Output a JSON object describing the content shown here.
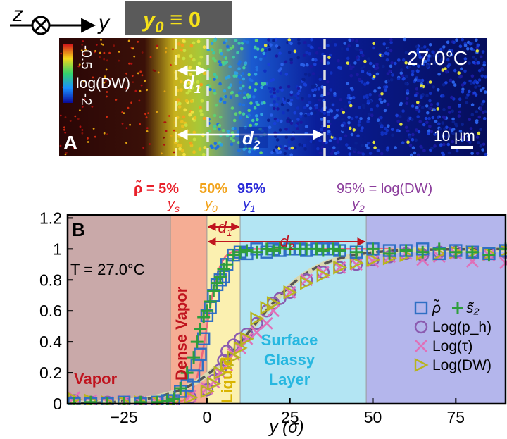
{
  "panel_a": {
    "panel_label": "A",
    "axis_z": "z",
    "axis_y": "y",
    "y0_banner": "y",
    "y0_banner_sub": "0",
    "y0_banner_rest": " ≡ 0",
    "temperature": "27.0°C",
    "colorbar_label": "log(DW)",
    "colorbar_max": "-0.5",
    "colorbar_min": "-2",
    "d1_label": "d",
    "d1_sub": "1",
    "d2_label": "d",
    "d2_sub": "2",
    "scale_bar_label": "10 μm",
    "colors": {
      "background": "#05050a",
      "banner": "#5a5a5a",
      "banner_text": "#f5e11a",
      "dashed": "#e8e8e8"
    }
  },
  "header_labels": {
    "rho_text": "ρ̃ = 5%",
    "ys_text": "y",
    "ys_sub": "s",
    "p50_text": "50%",
    "y0_text": "y",
    "y0_sub": "0",
    "p95_text": "95%",
    "y1_text": "y",
    "y1_sub": "1",
    "right_text": "95% = log(DW)",
    "y2_text": "y",
    "y2_sub": "2",
    "colors": {
      "red": "#e8202a",
      "orange": "#f2a31b",
      "blue": "#2a2ad8",
      "purple": "#8c3d9c"
    }
  },
  "chart_data": {
    "type": "scatter",
    "panel_label": "B",
    "xlabel": "y (σ)",
    "ylabel": "",
    "xlim": [
      -42,
      90
    ],
    "ylim": [
      0,
      1.22
    ],
    "xticks": [
      -25,
      0,
      25,
      50,
      75
    ],
    "xtick_labels": [
      "−25",
      "0",
      "25",
      "50",
      "75"
    ],
    "yticks": [
      0,
      0.2,
      0.4,
      0.6,
      0.8,
      1,
      1.2
    ],
    "ytick_labels": [
      "0",
      "0.2",
      "0.4",
      "0.6",
      "0.8",
      "1",
      "1.2"
    ],
    "annotation_temperature": "T = 27.0°C",
    "regions": [
      {
        "name": "Vapor",
        "x0": -42,
        "x1": -11,
        "color": "#c9a9a9"
      },
      {
        "name": "Dense Vapor",
        "x0": -11,
        "x1": 0,
        "color": "#f5ad94"
      },
      {
        "name": "Liquid",
        "x0": 0,
        "x1": 10,
        "color": "#fbf0b0"
      },
      {
        "name": "Surface Glassy Layer",
        "x0": 10,
        "x1": 48,
        "color": "#b3e5f3"
      },
      {
        "name": "",
        "x0": 48,
        "x1": 90,
        "color": "#b4b6ec"
      }
    ],
    "region_labels": [
      {
        "text": "Vapor",
        "color": "#c0141e"
      },
      {
        "text": "Dense Vapor",
        "color": "#c0141e"
      },
      {
        "text": "Liquid",
        "color": "#d9b400"
      },
      {
        "text": "Surface",
        "color": "#27b7e0"
      },
      {
        "text": "Glassy",
        "color": "#27b7e0"
      },
      {
        "text": "Layer",
        "color": "#27b7e0"
      }
    ],
    "d1_label": "d",
    "d1_sub": "1",
    "d2_label": "d",
    "d2_sub": "2",
    "arrow_color": "#c0141e",
    "legend_position": "right",
    "series": [
      {
        "name": "ρ̃",
        "marker": "square",
        "color": "#2f6fc4",
        "x": [
          -40,
          -35,
          -30,
          -25,
          -20,
          -15,
          -12,
          -10,
          -8,
          -6,
          -4,
          -3,
          -2,
          -1,
          0,
          1,
          2,
          3,
          4,
          5,
          6,
          8,
          10,
          12,
          15,
          18,
          20,
          22,
          25,
          28,
          30,
          33,
          35,
          38,
          40,
          45,
          50,
          55,
          60,
          65,
          70,
          75,
          80,
          85,
          90
        ],
        "y": [
          0,
          0,
          0,
          0.01,
          0,
          0.01,
          0.02,
          0.02,
          0.08,
          0.12,
          0.18,
          0.25,
          0.32,
          0.42,
          0.57,
          0.62,
          0.7,
          0.77,
          0.8,
          0.82,
          0.9,
          0.96,
          0.98,
          0.97,
          1.0,
          0.98,
          1.0,
          0.99,
          1.0,
          1.0,
          0.99,
          1.0,
          1.0,
          1.0,
          0.99,
          0.98,
          1.0,
          0.99,
          0.99,
          1.0,
          0.97,
          0.99,
          0.98,
          0.97,
          0.99
        ]
      },
      {
        "name": "s̃₂",
        "marker": "plus",
        "color": "#2e9e3c",
        "x": [
          -40,
          -35,
          -30,
          -25,
          -20,
          -15,
          -12,
          -10,
          -8,
          -6,
          -4,
          -3,
          -2,
          -1,
          0,
          1,
          2,
          3,
          4,
          5,
          6,
          8,
          10,
          12,
          15,
          18,
          20,
          22,
          25,
          28,
          30,
          33,
          35,
          38,
          40,
          45,
          50,
          55,
          60,
          65,
          70,
          75,
          80,
          85,
          90
        ],
        "y": [
          0,
          0.01,
          0,
          0,
          0.01,
          0.01,
          0.02,
          0.03,
          0.1,
          0.2,
          0.3,
          0.4,
          0.48,
          0.56,
          0.6,
          0.66,
          0.73,
          0.78,
          0.82,
          0.87,
          0.9,
          0.96,
          0.98,
          0.99,
          0.98,
          1.0,
          0.99,
          1.01,
          1.0,
          1.0,
          1.0,
          1.0,
          0.99,
          1.0,
          0.99,
          0.98,
          1.0,
          0.97,
          0.99,
          0.98,
          1.0,
          0.98,
          0.98,
          0.96,
          1.0
        ]
      },
      {
        "name": "Log(p_h)",
        "marker": "circle",
        "color": "#8b5bb0",
        "x": [
          -40,
          -35,
          -30,
          -25,
          -20,
          -15,
          -10,
          -5,
          0,
          2,
          4,
          5,
          6,
          8,
          10,
          12,
          15,
          18,
          20,
          22,
          25,
          30,
          35,
          40,
          45,
          50,
          55,
          60,
          65,
          70,
          75,
          80,
          85,
          90
        ],
        "y": [
          0.02,
          0.01,
          0.01,
          0.01,
          0.01,
          0.01,
          0.02,
          0.04,
          0.09,
          0.15,
          0.22,
          0.28,
          0.34,
          0.38,
          0.42,
          0.45,
          0.52,
          0.6,
          0.65,
          0.68,
          0.72,
          0.8,
          0.85,
          0.88,
          0.9,
          0.93,
          0.95,
          0.97,
          0.96,
          0.98,
          0.98,
          0.98,
          0.97,
          0.98
        ]
      },
      {
        "name": "Log(τ)",
        "marker": "x",
        "color": "#e070b8",
        "x": [
          -40,
          -35,
          -30,
          -25,
          -20,
          -15,
          -10,
          -5,
          0,
          2,
          4,
          6,
          8,
          10,
          12,
          15,
          18,
          20,
          25,
          30,
          35,
          40,
          45,
          50,
          55,
          60,
          65,
          70,
          75,
          80,
          85,
          90
        ],
        "y": [
          0.04,
          0.02,
          0.01,
          0.02,
          0.01,
          0.01,
          0.02,
          0.05,
          0.1,
          0.14,
          0.2,
          0.25,
          0.32,
          0.36,
          0.42,
          0.46,
          0.52,
          0.6,
          0.72,
          0.8,
          0.85,
          0.88,
          0.9,
          0.92,
          0.95,
          0.97,
          0.93,
          0.95,
          0.97,
          0.92,
          0.96,
          0.91
        ]
      },
      {
        "name": "Log(DW)",
        "marker": "triangle-right",
        "color": "#b8b41f",
        "x": [
          -40,
          -35,
          -30,
          -25,
          -20,
          -15,
          -10,
          -5,
          0,
          2,
          4,
          6,
          8,
          10,
          12,
          15,
          18,
          20,
          25,
          30,
          35,
          40,
          45,
          50,
          55,
          60,
          65,
          70,
          75,
          80,
          85,
          90
        ],
        "y": [
          0.03,
          0.02,
          0.01,
          0.01,
          0.01,
          0.01,
          0.02,
          0.04,
          0.08,
          0.13,
          0.2,
          0.25,
          0.3,
          0.36,
          0.42,
          0.55,
          0.62,
          0.65,
          0.72,
          0.78,
          0.83,
          0.88,
          0.91,
          0.93,
          0.94,
          0.96,
          0.97,
          0.97,
          0.98,
          0.98,
          0.97,
          0.99
        ]
      }
    ],
    "legend": [
      {
        "text": "ρ̃",
        "marker": "square",
        "color": "#2f6fc4"
      },
      {
        "text": "s̃₂",
        "marker": "plus",
        "color": "#2e9e3c"
      },
      {
        "text": "Log(p_h)",
        "marker": "circle",
        "color": "#8b5bb0"
      },
      {
        "text": "Log(τ)",
        "marker": "x",
        "color": "#e070b8"
      },
      {
        "text": "Log(DW)",
        "marker": "triangle-right",
        "color": "#b8b41f"
      }
    ],
    "fit_colors": {
      "sharp": "#f0667a",
      "dashed": "#555555"
    }
  }
}
